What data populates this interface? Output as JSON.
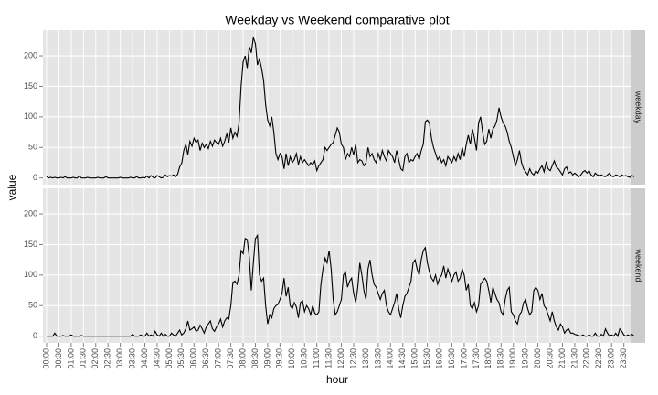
{
  "chart_data": {
    "type": "line",
    "title": "Weekday vs Weekend comparative plot",
    "x_label": "hour",
    "y_label": "value",
    "facet": true,
    "grid": true,
    "categories": [
      "00:00",
      null,
      null,
      null,
      null,
      null,
      "00:30",
      null,
      null,
      null,
      null,
      null,
      "01:00",
      null,
      null,
      null,
      null,
      null,
      "01:30",
      null,
      null,
      null,
      null,
      null,
      "02:00",
      null,
      null,
      null,
      null,
      null,
      "02:30",
      null,
      null,
      null,
      null,
      null,
      "03:00",
      null,
      null,
      null,
      null,
      null,
      "03:30",
      null,
      null,
      null,
      null,
      null,
      "04:00",
      null,
      null,
      null,
      null,
      null,
      "04:30",
      null,
      null,
      null,
      null,
      null,
      "05:00",
      null,
      null,
      null,
      null,
      null,
      "05:30",
      null,
      null,
      null,
      null,
      null,
      "06:00",
      null,
      null,
      null,
      null,
      null,
      "06:30",
      null,
      null,
      null,
      null,
      null,
      "07:00",
      null,
      null,
      null,
      null,
      null,
      "07:30",
      null,
      null,
      null,
      null,
      null,
      "08:00",
      null,
      null,
      null,
      null,
      null,
      "08:30",
      null,
      null,
      null,
      null,
      null,
      "09:00",
      null,
      null,
      null,
      null,
      null,
      "09:30",
      null,
      null,
      null,
      null,
      null,
      "10:00",
      null,
      null,
      null,
      null,
      null,
      "10:30",
      null,
      null,
      null,
      null,
      null,
      "11:00",
      null,
      null,
      null,
      null,
      null,
      "11:30",
      null,
      null,
      null,
      null,
      null,
      "12:00",
      null,
      null,
      null,
      null,
      null,
      "12:30",
      null,
      null,
      null,
      null,
      null,
      "13:00",
      null,
      null,
      null,
      null,
      null,
      "13:30",
      null,
      null,
      null,
      null,
      null,
      "14:00",
      null,
      null,
      null,
      null,
      null,
      "14:30",
      null,
      null,
      null,
      null,
      null,
      "15:00",
      null,
      null,
      null,
      null,
      null,
      "15:30",
      null,
      null,
      null,
      null,
      null,
      "16:00",
      null,
      null,
      null,
      null,
      null,
      "16:30",
      null,
      null,
      null,
      null,
      null,
      "17:00",
      null,
      null,
      null,
      null,
      null,
      "17:30",
      null,
      null,
      null,
      null,
      null,
      "18:00",
      null,
      null,
      null,
      null,
      null,
      "18:30",
      null,
      null,
      null,
      null,
      null,
      "19:00",
      null,
      null,
      null,
      null,
      null,
      "19:30",
      null,
      null,
      null,
      null,
      null,
      "20:00",
      null,
      null,
      null,
      null,
      null,
      "20:30",
      null,
      null,
      null,
      null,
      null,
      "21:00",
      null,
      null,
      null,
      null,
      null,
      "21:30",
      null,
      null,
      null,
      null,
      null,
      "22:00",
      null,
      null,
      null,
      null,
      null,
      "22:30",
      null,
      null,
      null,
      null,
      null,
      "23:00",
      null,
      null,
      null,
      null,
      null,
      "23:30",
      null,
      null,
      null,
      null,
      null
    ],
    "series": [
      {
        "name": "weekday",
        "color": "#000000",
        "values": [
          2,
          0,
          1,
          0,
          1,
          0,
          0,
          1,
          0,
          2,
          0,
          0,
          0,
          1,
          0,
          0,
          3,
          0,
          0,
          0,
          1,
          0,
          0,
          0,
          0,
          1,
          0,
          0,
          0,
          2,
          0,
          0,
          0,
          0,
          0,
          0,
          1,
          0,
          0,
          0,
          0,
          1,
          0,
          0,
          2,
          0,
          0,
          1,
          0,
          3,
          0,
          4,
          1,
          0,
          4,
          2,
          0,
          1,
          5,
          2,
          4,
          3,
          5,
          2,
          6,
          18,
          24,
          45,
          55,
          38,
          60,
          52,
          65,
          58,
          62,
          45,
          57,
          50,
          55,
          48,
          60,
          52,
          62,
          58,
          55,
          65,
          52,
          60,
          72,
          58,
          82,
          65,
          75,
          68,
          90,
          150,
          190,
          200,
          180,
          215,
          205,
          230,
          220,
          185,
          195,
          180,
          160,
          120,
          95,
          85,
          100,
          75,
          40,
          30,
          40,
          35,
          15,
          40,
          20,
          35,
          25,
          30,
          40,
          22,
          35,
          25,
          30,
          25,
          20,
          25,
          22,
          28,
          12,
          20,
          25,
          30,
          50,
          45,
          50,
          55,
          58,
          70,
          82,
          75,
          55,
          50,
          30,
          40,
          35,
          50,
          38,
          55,
          25,
          30,
          28,
          20,
          25,
          50,
          35,
          40,
          30,
          25,
          40,
          30,
          45,
          35,
          28,
          45,
          40,
          35,
          25,
          45,
          30,
          15,
          12,
          35,
          40,
          25,
          30,
          28,
          35,
          40,
          30,
          45,
          55,
          92,
          95,
          90,
          65,
          50,
          40,
          30,
          35,
          25,
          30,
          20,
          35,
          30,
          25,
          35,
          28,
          40,
          30,
          50,
          35,
          55,
          70,
          55,
          80,
          65,
          45,
          90,
          100,
          75,
          55,
          60,
          80,
          65,
          80,
          85,
          95,
          115,
          100,
          90,
          85,
          75,
          60,
          50,
          35,
          20,
          30,
          45,
          25,
          15,
          10,
          5,
          15,
          8,
          5,
          12,
          8,
          15,
          20,
          10,
          25,
          15,
          12,
          20,
          28,
          18,
          15,
          10,
          5,
          15,
          18,
          8,
          10,
          5,
          8,
          5,
          2,
          5,
          10,
          12,
          8,
          12,
          5,
          2,
          8,
          5,
          4,
          5,
          3,
          2,
          5,
          8,
          3,
          2,
          5,
          4,
          2,
          5,
          3,
          4,
          2,
          1,
          4,
          2
        ]
      },
      {
        "name": "weekend",
        "color": "#000000",
        "values": [
          0,
          0,
          0,
          0,
          5,
          0,
          0,
          0,
          1,
          0,
          0,
          0,
          2,
          0,
          0,
          0,
          0,
          1,
          0,
          0,
          0,
          0,
          0,
          0,
          0,
          0,
          0,
          0,
          0,
          0,
          0,
          0,
          0,
          0,
          0,
          0,
          0,
          0,
          0,
          0,
          0,
          0,
          3,
          0,
          0,
          0,
          2,
          0,
          0,
          5,
          0,
          2,
          0,
          8,
          2,
          0,
          5,
          0,
          3,
          0,
          0,
          5,
          2,
          0,
          5,
          10,
          2,
          5,
          12,
          25,
          10,
          12,
          15,
          8,
          10,
          18,
          12,
          5,
          15,
          20,
          25,
          12,
          8,
          15,
          20,
          28,
          15,
          25,
          30,
          28,
          50,
          88,
          90,
          85,
          100,
          140,
          135,
          160,
          158,
          130,
          75,
          120,
          160,
          165,
          100,
          90,
          95,
          50,
          20,
          35,
          30,
          45,
          50,
          52,
          60,
          70,
          95,
          65,
          80,
          50,
          45,
          55,
          48,
          30,
          55,
          58,
          40,
          50,
          45,
          35,
          50,
          38,
          35,
          40,
          85,
          110,
          128,
          120,
          140,
          110,
          60,
          35,
          40,
          50,
          60,
          100,
          105,
          80,
          90,
          95,
          70,
          55,
          80,
          120,
          100,
          75,
          60,
          110,
          125,
          100,
          85,
          80,
          70,
          60,
          70,
          75,
          50,
          40,
          35,
          45,
          55,
          70,
          45,
          30,
          50,
          65,
          70,
          80,
          90,
          120,
          125,
          110,
          100,
          125,
          140,
          145,
          120,
          105,
          95,
          90,
          100,
          85,
          95,
          100,
          115,
          95,
          110,
          100,
          90,
          100,
          105,
          90,
          95,
          110,
          100,
          75,
          85,
          50,
          45,
          55,
          40,
          50,
          85,
          90,
          95,
          90,
          75,
          55,
          80,
          70,
          60,
          55,
          40,
          35,
          60,
          75,
          80,
          40,
          35,
          25,
          20,
          35,
          40,
          55,
          60,
          45,
          35,
          40,
          75,
          80,
          75,
          60,
          70,
          50,
          45,
          35,
          25,
          40,
          25,
          15,
          10,
          20,
          15,
          5,
          10,
          12,
          5,
          5,
          3,
          2,
          1,
          0,
          2,
          0,
          0,
          2,
          0,
          0,
          5,
          0,
          0,
          3,
          0,
          12,
          5,
          0,
          2,
          0,
          5,
          0,
          12,
          8,
          2,
          0,
          2,
          0,
          3,
          0
        ]
      }
    ],
    "ylim": [
      -11,
      242
    ],
    "yticks": [
      0,
      50,
      100,
      150,
      200
    ]
  }
}
